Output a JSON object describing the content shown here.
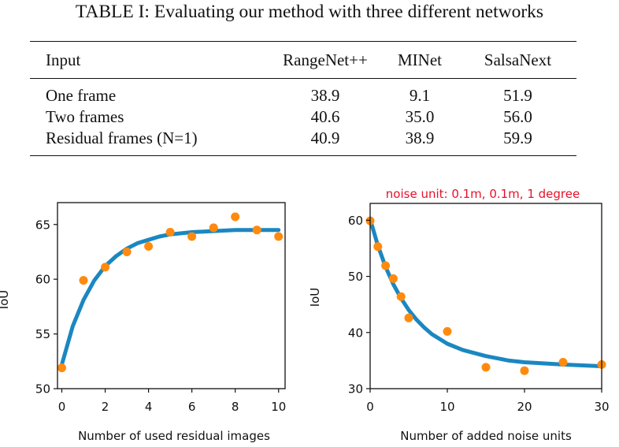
{
  "table": {
    "caption": "TABLE I: Evaluating our method with three different networks",
    "columns": [
      "Input",
      "RangeNet++",
      "MINet",
      "SalsaNext"
    ],
    "rows": [
      [
        "One frame",
        "38.9",
        "9.1",
        "51.9"
      ],
      [
        "Two frames",
        "40.6",
        "35.0",
        "56.0"
      ],
      [
        "Residual frames (N=1)",
        "40.9",
        "38.9",
        "59.9"
      ]
    ]
  },
  "chart_data": [
    {
      "type": "scatter",
      "xlabel": "Number of used residual images",
      "ylabel": "IoU",
      "xlim": [
        -0.2,
        10.3
      ],
      "ylim": [
        50,
        67
      ],
      "xticks": [
        0,
        2,
        4,
        6,
        8,
        10
      ],
      "yticks": [
        50,
        55,
        60,
        65
      ],
      "points": {
        "x": [
          0,
          1,
          2,
          3,
          4,
          5,
          6,
          7,
          8,
          9,
          10
        ],
        "y": [
          51.9,
          59.9,
          61.1,
          62.5,
          63.0,
          64.3,
          63.9,
          64.7,
          65.7,
          64.5,
          63.9
        ]
      },
      "fit": {
        "x": [
          0,
          0.5,
          1,
          1.5,
          2,
          2.5,
          3,
          3.5,
          4,
          4.5,
          5,
          6,
          7,
          8,
          9,
          10
        ],
        "y": [
          52.2,
          55.7,
          58.1,
          59.9,
          61.2,
          62.1,
          62.8,
          63.3,
          63.6,
          63.9,
          64.1,
          64.3,
          64.4,
          64.5,
          64.5,
          64.5
        ]
      },
      "colors": {
        "points": "#ff8a0d",
        "fit": "#1b87c1"
      }
    },
    {
      "type": "scatter",
      "title": "noise unit: 0.1m, 0.1m, 1 degree",
      "xlabel": "Number of added noise units",
      "ylabel": "IoU",
      "xlim": [
        0,
        30
      ],
      "ylim": [
        30,
        63
      ],
      "xticks": [
        0,
        10,
        20,
        30
      ],
      "yticks": [
        30,
        40,
        50,
        60
      ],
      "points": {
        "x": [
          0,
          1,
          2,
          3,
          4,
          5,
          10,
          15,
          20,
          25,
          30
        ],
        "y": [
          59.9,
          55.3,
          51.9,
          49.6,
          46.4,
          42.6,
          40.2,
          33.8,
          33.2,
          34.7,
          34.3
        ]
      },
      "fit": {
        "x": [
          0,
          1,
          2,
          3,
          4,
          5,
          6,
          7,
          8,
          10,
          12,
          15,
          18,
          20,
          25,
          30
        ],
        "y": [
          60.2,
          55.5,
          51.7,
          48.6,
          46.1,
          44.0,
          42.3,
          40.9,
          39.7,
          38.0,
          36.9,
          35.8,
          35.0,
          34.7,
          34.3,
          34.0
        ]
      },
      "colors": {
        "points": "#ff8a0d",
        "fit": "#1b87c1",
        "title": "#e8102a"
      }
    }
  ]
}
